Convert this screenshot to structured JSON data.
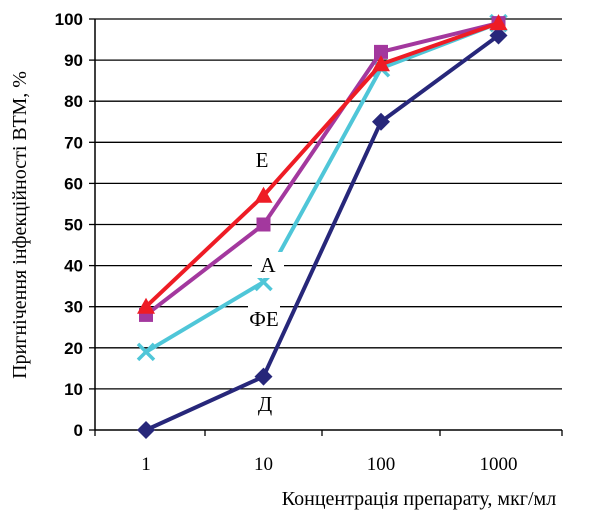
{
  "chart_data": {
    "type": "line",
    "xlabel": "Концентрація препарату, мкг/мл",
    "ylabel": "Пригнічення інфекційності ВТМ, %",
    "x_scale": "log",
    "x": [
      1,
      10,
      100,
      1000
    ],
    "x_tick_labels": [
      "1",
      "10",
      "100",
      "1000"
    ],
    "ylim": [
      0,
      100
    ],
    "y_ticks": [
      0,
      10,
      20,
      30,
      40,
      50,
      60,
      70,
      80,
      90,
      100
    ],
    "grid": "horizontal",
    "legend": "none",
    "series": [
      {
        "name": "Е",
        "values": [
          30,
          57,
          89,
          99
        ],
        "color": "#ee1c25",
        "marker": "triangle"
      },
      {
        "name": "А",
        "values": [
          28,
          50,
          92,
          99
        ],
        "color": "#a3389e",
        "marker": "square"
      },
      {
        "name": "ФЕ",
        "values": [
          19,
          36,
          88,
          99
        ],
        "color": "#4fc6d8",
        "marker": "cross"
      },
      {
        "name": "Д",
        "values": [
          0,
          13,
          75,
          96
        ],
        "color": "#27277a",
        "marker": "diamond"
      }
    ]
  }
}
